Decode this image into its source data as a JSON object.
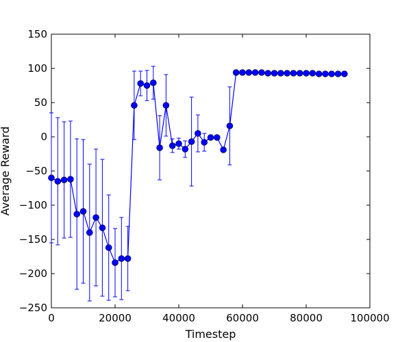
{
  "chart_data": {
    "type": "line",
    "title": "",
    "xlabel": "Timestep",
    "ylabel": "Average Reward",
    "xlim": [
      0,
      100000
    ],
    "ylim": [
      -250,
      150
    ],
    "grid": false,
    "legend": "none",
    "x_ticks": [
      0,
      20000,
      40000,
      60000,
      80000,
      100000
    ],
    "x_tick_labels": [
      "0",
      "20000",
      "40000",
      "60000",
      "80000",
      "100000"
    ],
    "y_ticks": [
      150,
      100,
      50,
      0,
      -50,
      -100,
      -150,
      -200,
      -250
    ],
    "y_tick_labels": [
      "150",
      "100",
      "50",
      "0",
      "−50",
      "−100",
      "−150",
      "−200",
      "−250"
    ],
    "color": "#0000ff",
    "series": [
      {
        "x": [
          0,
          2000,
          4000,
          6000,
          8000,
          10000,
          12000,
          14000,
          16000,
          18000,
          20000,
          22000,
          24000,
          26000,
          28000,
          30000,
          32000,
          34000,
          36000,
          38000,
          40000,
          42000,
          44000,
          46000,
          48000,
          50000,
          52000,
          54000,
          56000,
          58000,
          60000,
          62000,
          64000,
          66000,
          68000,
          70000,
          72000,
          74000,
          76000,
          78000,
          80000,
          82000,
          84000,
          86000,
          88000,
          90000,
          92000
        ],
        "y": [
          -60,
          -65,
          -63,
          -62,
          -113,
          -109,
          -140,
          -118,
          -133,
          -162,
          -184,
          -178,
          -178,
          46,
          78,
          75,
          79,
          -16,
          46,
          -13,
          -10,
          -18,
          -7,
          5,
          -8,
          -1,
          -1,
          -19,
          16,
          94,
          94,
          94,
          94,
          94,
          93,
          93,
          93,
          93,
          93,
          93,
          93,
          93,
          92,
          92,
          92,
          92,
          92
        ],
        "err": [
          95,
          93,
          85,
          85,
          110,
          105,
          100,
          100,
          100,
          77,
          50,
          60,
          47,
          50,
          18,
          22,
          24,
          47,
          45,
          10,
          8,
          12,
          65,
          27,
          13,
          0,
          0,
          0,
          57,
          0,
          0,
          0,
          0,
          0,
          0,
          0,
          0,
          0,
          0,
          0,
          0,
          0,
          0,
          0,
          0,
          0,
          0
        ]
      }
    ]
  }
}
